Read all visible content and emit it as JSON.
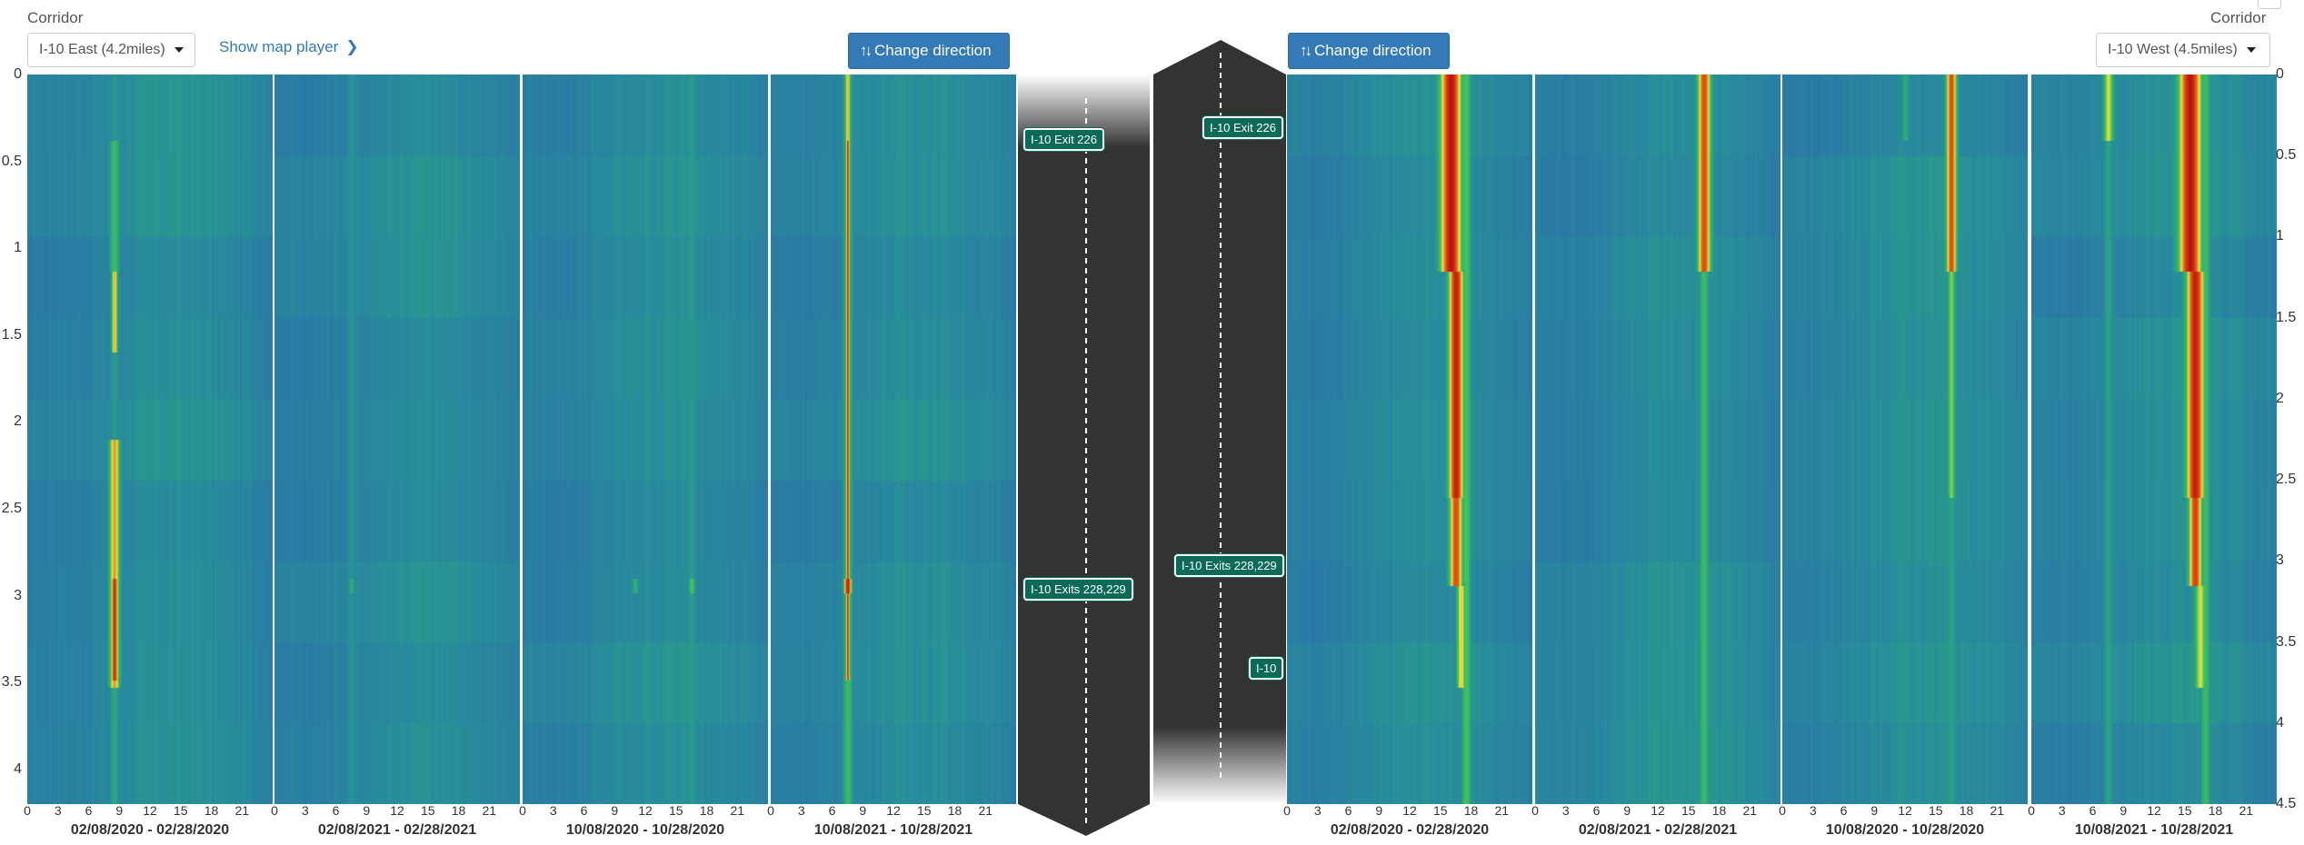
{
  "left": {
    "corridor_label": "Corridor",
    "selected": "I-10 East (4.2miles)",
    "map_link": "Show map player",
    "button": "Change direction"
  },
  "right": {
    "corridor_label": "Corridor",
    "selected": "I-10 West (4.5miles)",
    "button": "Change direction"
  },
  "hour_ticks": [
    "0",
    "3",
    "6",
    "9",
    "12",
    "15",
    "18",
    "21"
  ],
  "left_y_ticks": [
    "0",
    "0.5",
    "1",
    "1.5",
    "2",
    "2.5",
    "3",
    "3.5",
    "4"
  ],
  "right_y_ticks": [
    "0",
    "0.5",
    "1",
    "1.5",
    "2",
    "2.5",
    "3",
    "3.5",
    "4",
    "4.5"
  ],
  "left_panels": [
    {
      "date_range": "02/08/2020 - 02/28/2020"
    },
    {
      "date_range": "02/08/2021 - 02/28/2021"
    },
    {
      "date_range": "10/08/2020 - 10/28/2020"
    },
    {
      "date_range": "10/08/2021 - 10/28/2021"
    }
  ],
  "right_panels": [
    {
      "date_range": "02/08/2020 - 02/28/2020"
    },
    {
      "date_range": "02/08/2021 - 02/28/2021"
    },
    {
      "date_range": "10/08/2020 - 10/28/2020"
    },
    {
      "date_range": "10/08/2021 - 10/28/2021"
    }
  ],
  "signs": {
    "left_exit_226": "I-10 Exit 226",
    "left_exits_228": "I-10 Exits 228,229",
    "right_exit_226": "I-10 Exit 226",
    "right_exits_228": "I-10 Exits 228,229",
    "right_i10": "I-10"
  },
  "colors": {
    "primary_button": "#337ab7",
    "sign_green": "#0c6b58",
    "road": "#333333",
    "heat_low": "#2b7fb0",
    "heat_mid": "#2fb86a",
    "heat_high": "#f6e43a",
    "heat_peak": "#c81414"
  }
}
